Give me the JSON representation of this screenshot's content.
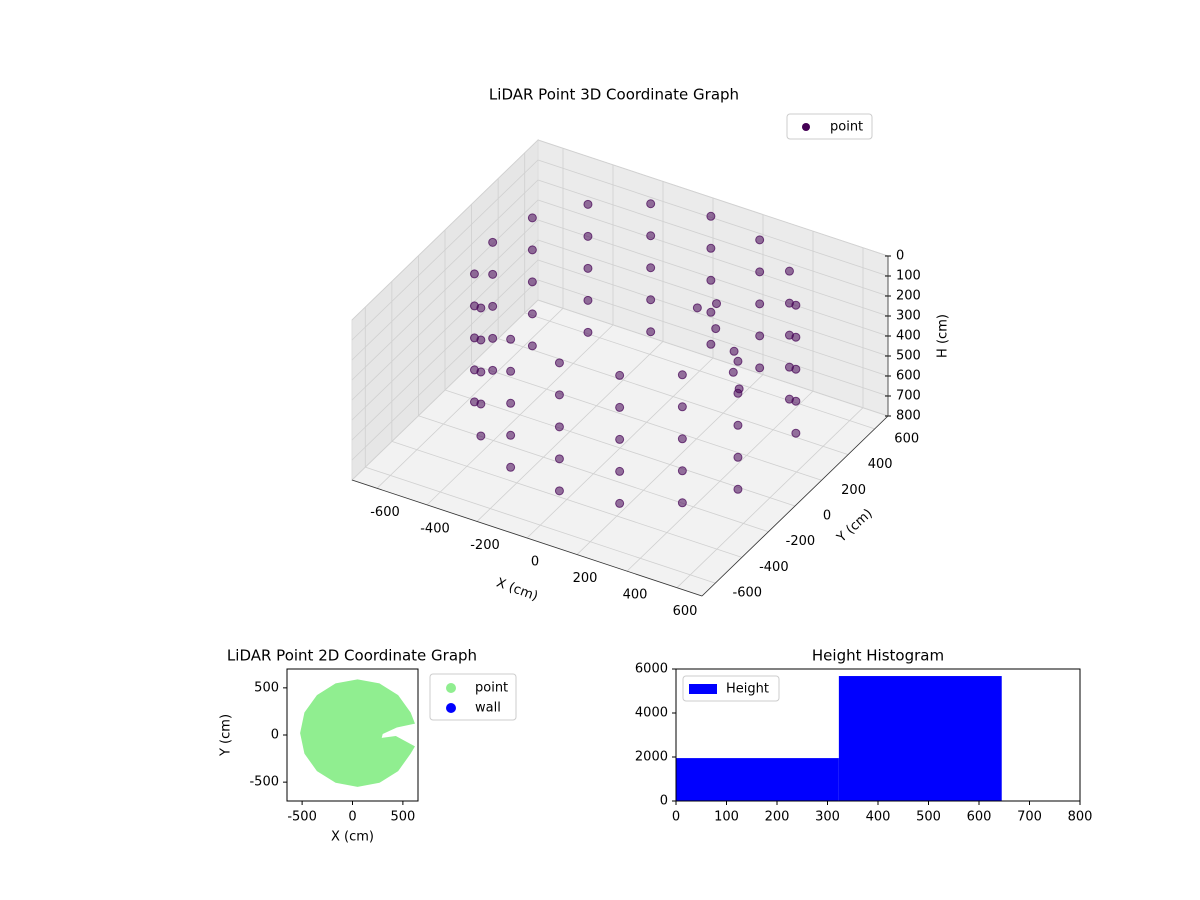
{
  "chart_data": [
    {
      "type": "scatter3d",
      "title": "LiDAR Point 3D Coordinate Graph",
      "xlabel": "X (cm)",
      "ylabel": "Y (cm)",
      "zlabel": "H (cm)",
      "xlim": [
        -700,
        700
      ],
      "ylim": [
        -700,
        700
      ],
      "zlim": [
        800,
        0
      ],
      "xticks": [
        -600,
        -400,
        -200,
        0,
        200,
        400,
        600
      ],
      "yticks": [
        -600,
        -400,
        -200,
        0,
        200,
        400,
        600
      ],
      "zticks": [
        0,
        100,
        200,
        300,
        400,
        500,
        600,
        700,
        800
      ],
      "grid": true,
      "legend": "upper right",
      "series": [
        {
          "name": "point",
          "color": "#440154",
          "x": [
            577,
            577,
            577,
            577,
            577,
            453,
            453,
            453,
            453,
            453,
            268,
            268,
            268,
            268,
            268,
            50,
            50,
            50,
            50,
            50,
            -168,
            -168,
            -168,
            -168,
            -168,
            -353,
            -353,
            -353,
            -353,
            -353,
            -477,
            -477,
            -477,
            -477,
            -477,
            -520,
            -520,
            -520,
            -520,
            -520,
            -477,
            -477,
            -477,
            -477,
            -477,
            -353,
            -353,
            -353,
            -353,
            -353,
            -168,
            -168,
            -168,
            -168,
            -168,
            50,
            50,
            50,
            50,
            50,
            268,
            268,
            268,
            268,
            268,
            453,
            453,
            453,
            453,
            453,
            577,
            577,
            577,
            577,
            577,
            200,
            150,
            250,
            350,
            400,
            450
          ],
          "y": [
            238,
            238,
            238,
            238,
            238,
            423,
            423,
            423,
            423,
            423,
            547,
            547,
            547,
            547,
            547,
            590,
            590,
            590,
            590,
            590,
            547,
            547,
            547,
            547,
            547,
            423,
            423,
            423,
            423,
            423,
            238,
            238,
            238,
            238,
            238,
            20,
            20,
            20,
            20,
            20,
            -198,
            -198,
            -198,
            -198,
            -198,
            -383,
            -383,
            -383,
            -383,
            -383,
            -507,
            -507,
            -507,
            -507,
            -507,
            -550,
            -550,
            -550,
            -550,
            -550,
            -507,
            -507,
            -507,
            -507,
            -507,
            -383,
            -383,
            -383,
            -383,
            -383,
            -198,
            -198,
            -198,
            -198,
            -198,
            350,
            300,
            250,
            200,
            100,
            50
          ],
          "z": [
            0,
            160,
            320,
            480,
            640,
            0,
            160,
            320,
            480,
            640,
            0,
            160,
            320,
            480,
            640,
            0,
            160,
            320,
            480,
            640,
            0,
            160,
            320,
            480,
            640,
            0,
            160,
            320,
            480,
            640,
            0,
            160,
            320,
            480,
            640,
            0,
            160,
            320,
            480,
            640,
            0,
            160,
            320,
            480,
            640,
            0,
            160,
            320,
            480,
            640,
            0,
            160,
            320,
            480,
            640,
            0,
            160,
            320,
            480,
            640,
            0,
            160,
            320,
            480,
            640,
            0,
            160,
            320,
            480,
            640,
            0,
            160,
            320,
            480,
            640,
            220,
            230,
            260,
            300,
            320,
            350
          ]
        }
      ]
    },
    {
      "type": "scatter",
      "title": "LiDAR Point 2D Coordinate Graph",
      "xlabel": "X (cm)",
      "ylabel": "Y (cm)",
      "xlim": [
        -650,
        650
      ],
      "ylim": [
        -700,
        700
      ],
      "xticks": [
        -500,
        0,
        500
      ],
      "yticks": [
        -500,
        0,
        500
      ],
      "legend": "outside right",
      "series": [
        {
          "name": "point",
          "color": "#90ee90",
          "x": [
            577,
            453,
            268,
            50,
            -168,
            -353,
            -477,
            -520,
            -477,
            -353,
            -168,
            50,
            268,
            453,
            577,
            620,
            430,
            290,
            300,
            440,
            620
          ],
          "y": [
            238,
            423,
            547,
            590,
            547,
            423,
            238,
            20,
            -198,
            -383,
            -507,
            -550,
            -507,
            -383,
            -198,
            -120,
            -10,
            -30,
            10,
            80,
            120
          ]
        },
        {
          "name": "wall",
          "color": "#0000ff",
          "x": [],
          "y": []
        }
      ]
    },
    {
      "type": "histogram",
      "title": "Height Histogram",
      "name": "Height",
      "color": "#0000ff",
      "bins": [
        0,
        322.5,
        645
      ],
      "counts": [
        1950,
        5680
      ],
      "xlim": [
        0,
        800
      ],
      "ylim": [
        0,
        6000
      ],
      "xticks": [
        0,
        100,
        200,
        300,
        400,
        500,
        600,
        700,
        800
      ],
      "yticks": [
        0,
        2000,
        4000,
        6000
      ],
      "legend": "upper left"
    }
  ]
}
